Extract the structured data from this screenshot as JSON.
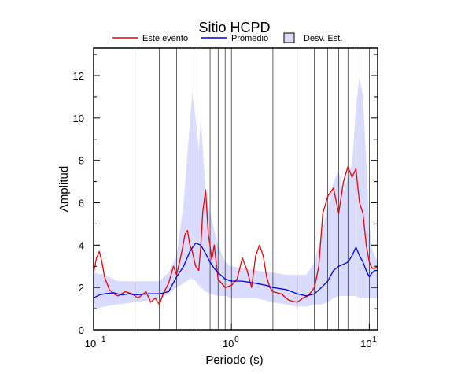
{
  "chart_data": {
    "type": "line",
    "title": "Sitio HCPD",
    "xlabel": "Periodo (s)",
    "ylabel": "Amplitud",
    "x_scale": "log",
    "xlim": [
      0.1,
      11.5
    ],
    "ylim": [
      0,
      13.3
    ],
    "x_ticks": [
      0.1,
      1,
      10
    ],
    "x_tick_labels": [
      "10",
      "10",
      "10"
    ],
    "x_tick_exponents": [
      "−1",
      "0",
      "1"
    ],
    "y_ticks": [
      0,
      2,
      4,
      6,
      8,
      10,
      12
    ],
    "y_tick_labels": [
      "0",
      "2",
      "4",
      "6",
      "8",
      "10",
      "12"
    ],
    "grid": "vertical",
    "legend_position": "top",
    "colors": {
      "evento": "#ee0000",
      "promedio": "#0000dd",
      "band_fill": "#d9dcff",
      "band_edge": "#000000"
    },
    "legend": [
      "Este evento",
      "Promedio",
      "Desv. Est."
    ],
    "series": [
      {
        "x": [
          0.1,
          0.105,
          0.11,
          0.115,
          0.12,
          0.13,
          0.14,
          0.15,
          0.17,
          0.19,
          0.21,
          0.24,
          0.26,
          0.28,
          0.3,
          0.32,
          0.35,
          0.38,
          0.4,
          0.42,
          0.44,
          0.46,
          0.48,
          0.5,
          0.52,
          0.55,
          0.58,
          0.6,
          0.62,
          0.65,
          0.68,
          0.7,
          0.72,
          0.75,
          0.8,
          0.9,
          1.0,
          1.1,
          1.2,
          1.3,
          1.4,
          1.5,
          1.6,
          1.7,
          1.8,
          1.9,
          2.0,
          2.3,
          2.6,
          3.0,
          3.3,
          3.6,
          4.0,
          4.3,
          4.6,
          5.0,
          5.5,
          6.0,
          6.5,
          7.0,
          7.5,
          8.0,
          8.5,
          9.0,
          9.5,
          10.0,
          10.5,
          11.0,
          11.5
        ],
        "values": [
          2.7,
          3.4,
          3.7,
          3.2,
          2.5,
          1.9,
          1.7,
          1.6,
          1.8,
          1.7,
          1.5,
          1.8,
          1.3,
          1.5,
          1.2,
          1.7,
          2.2,
          3.0,
          2.6,
          3.2,
          3.8,
          4.5,
          4.7,
          4.0,
          3.7,
          3.0,
          2.8,
          4.0,
          5.6,
          6.6,
          4.5,
          4.0,
          3.3,
          4.0,
          2.4,
          2.0,
          2.1,
          2.4,
          3.4,
          2.8,
          2.0,
          3.5,
          4.0,
          3.5,
          2.5,
          2.0,
          1.8,
          1.7,
          1.4,
          1.3,
          1.5,
          1.6,
          2.0,
          3.0,
          5.5,
          6.3,
          6.7,
          5.5,
          7.0,
          7.7,
          7.2,
          7.6,
          6.0,
          5.5,
          4.0,
          3.2,
          2.9,
          2.9,
          3.0
        ]
      },
      {
        "x": [
          0.1,
          0.11,
          0.12,
          0.14,
          0.16,
          0.18,
          0.2,
          0.25,
          0.3,
          0.35,
          0.4,
          0.45,
          0.5,
          0.55,
          0.6,
          0.65,
          0.7,
          0.75,
          0.8,
          0.9,
          1.0,
          1.2,
          1.5,
          1.8,
          2.0,
          2.5,
          3.0,
          3.5,
          4.0,
          4.5,
          5.0,
          5.5,
          6.0,
          6.5,
          7.0,
          7.5,
          8.0,
          8.5,
          9.0,
          9.5,
          10.0,
          10.5,
          11.0,
          11.5
        ],
        "values": [
          1.5,
          1.65,
          1.7,
          1.75,
          1.65,
          1.7,
          1.65,
          1.7,
          1.7,
          1.8,
          2.5,
          3.0,
          3.7,
          4.1,
          4.0,
          3.6,
          3.2,
          2.9,
          2.7,
          2.4,
          2.3,
          2.3,
          2.2,
          2.1,
          2.0,
          1.9,
          1.7,
          1.6,
          1.7,
          2.0,
          2.3,
          2.8,
          3.0,
          3.1,
          3.2,
          3.5,
          3.9,
          3.5,
          3.2,
          2.8,
          2.5,
          2.7,
          2.8,
          2.8
        ]
      }
    ],
    "band": {
      "x": [
        0.1,
        0.12,
        0.15,
        0.2,
        0.25,
        0.3,
        0.35,
        0.4,
        0.45,
        0.5,
        0.52,
        0.55,
        0.58,
        0.6,
        0.65,
        0.7,
        0.8,
        0.9,
        1.0,
        1.2,
        1.5,
        2.0,
        2.5,
        3.0,
        3.5,
        4.0,
        4.5,
        5.0,
        5.5,
        6.0,
        6.5,
        7.0,
        7.5,
        8.0,
        8.5,
        9.0,
        9.5,
        10.0,
        10.5,
        11.0,
        11.5
      ],
      "upper": [
        2.7,
        2.6,
        2.3,
        2.3,
        2.3,
        2.3,
        2.7,
        3.5,
        6.0,
        9.8,
        11.2,
        10.0,
        8.5,
        10.0,
        6.5,
        5.5,
        4.0,
        3.2,
        3.0,
        2.9,
        2.8,
        2.7,
        2.6,
        2.6,
        2.6,
        3.2,
        4.5,
        5.8,
        7.0,
        7.5,
        6.5,
        7.2,
        7.8,
        10.5,
        12.0,
        11.0,
        8.0,
        5.0,
        3.8,
        3.5,
        3.2
      ],
      "lower": [
        1.0,
        1.1,
        1.2,
        1.3,
        1.4,
        1.5,
        1.7,
        2.0,
        2.2,
        2.4,
        2.4,
        2.3,
        2.1,
        2.0,
        1.8,
        1.7,
        1.6,
        1.6,
        1.5,
        1.5,
        1.5,
        1.3,
        1.2,
        1.1,
        1.1,
        1.2,
        1.2,
        1.3,
        1.5,
        1.6,
        1.6,
        1.6,
        1.6,
        1.6,
        1.5,
        1.5,
        1.5,
        1.5,
        1.5,
        1.5,
        1.5
      ]
    }
  }
}
